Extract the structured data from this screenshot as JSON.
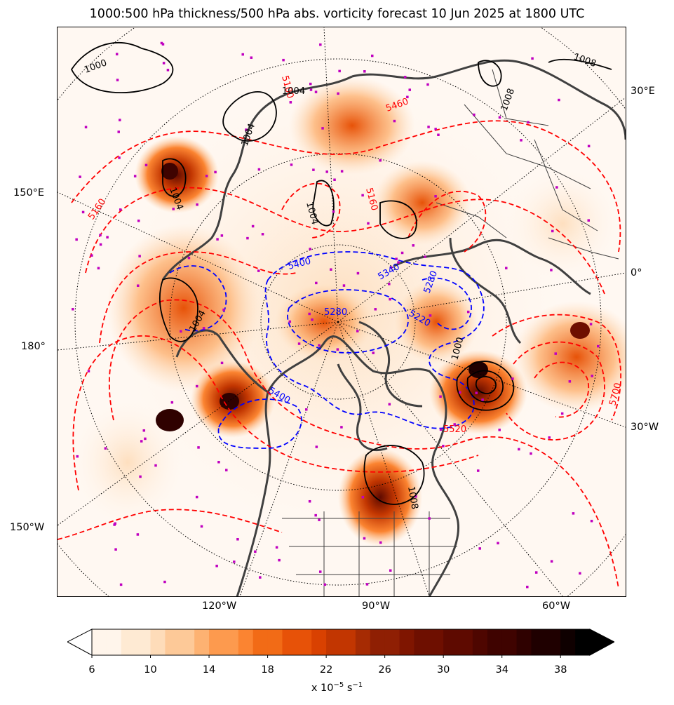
{
  "title": "1000:500 hPa thickness/500 hPa abs. vorticity forecast 10 Jun 2025 at 1800 UTC",
  "map": {
    "projection": "north polar stereographic",
    "lon_labels": {
      "lon_30E": "30°E",
      "lon_150E": "150°E",
      "lon_0": "0°",
      "lon_180": "180°",
      "lon_30W": "30°W",
      "lon_150W": "150°W",
      "lon_120W": "120°W",
      "lon_90W": "90°W",
      "lon_60W": "60°W"
    },
    "thickness_contour_labels": [
      "5100",
      "5160",
      "5160",
      "5700",
      "5520",
      "5400",
      "5340",
      "5280",
      "5220",
      "5280",
      "5400",
      "5460"
    ],
    "thickness_colors": {
      "high": "#ff0000",
      "low": "#0000ff"
    },
    "pressure_contour_labels": [
      "1000",
      "1004",
      "1004",
      "1008",
      "1004",
      "1004",
      "1004",
      "1008",
      "1000",
      "1008"
    ],
    "pressure_color": "#000000",
    "coastline_color": "#404040",
    "marker_color": "#c000c0"
  },
  "colorbar": {
    "ticks": [
      "6",
      "10",
      "14",
      "18",
      "22",
      "26",
      "30",
      "34",
      "38"
    ],
    "min": 6,
    "max": 40,
    "step": 1,
    "extend": "both",
    "unit_base": "x 10",
    "unit_exp1": "−5",
    "unit_mid": " s",
    "unit_exp2": "−1",
    "colors": [
      "#fff5eb",
      "#feead3",
      "#fedcb9",
      "#fdc998",
      "#fdb272",
      "#fd9a4e",
      "#fb8431",
      "#f26b16",
      "#e75208",
      "#d94101",
      "#c23601",
      "#a62b03",
      "#8f1f03",
      "#7f1500",
      "#6e0f00",
      "#5e0a00",
      "#4e0600",
      "#3f0300",
      "#2f0100",
      "#1f0000",
      "#0f0000",
      "#000000"
    ]
  }
}
